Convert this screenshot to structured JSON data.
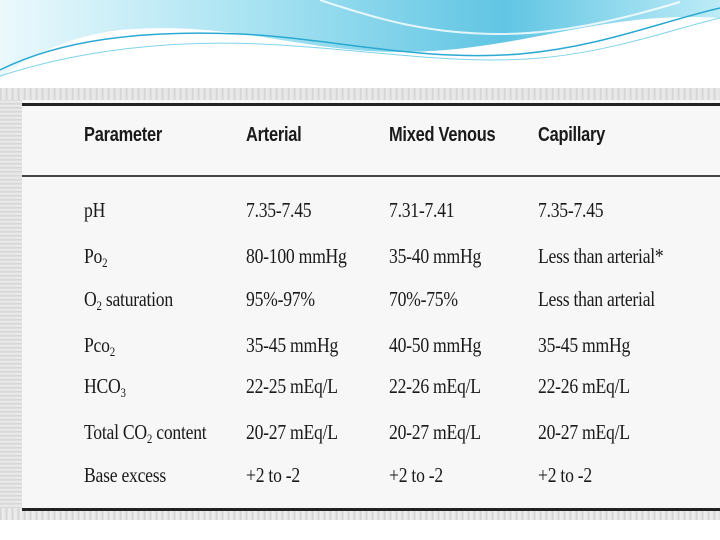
{
  "table": {
    "headers": [
      "Parameter",
      "Arterial",
      "Mixed Venous",
      "Capillary"
    ],
    "rows": [
      {
        "parameter": "pH",
        "parameter_sub": "",
        "parameter_suffix": "",
        "arterial": "7.35-7.45",
        "mixed_venous": "7.31-7.41",
        "capillary": "7.35-7.45"
      },
      {
        "parameter": "Po",
        "parameter_sub": "2",
        "parameter_suffix": "",
        "arterial": "80-100 mmHg",
        "mixed_venous": "35-40 mmHg",
        "capillary": "Less than arterial*"
      },
      {
        "parameter": "O",
        "parameter_sub": "2",
        "parameter_suffix": " saturation",
        "arterial": "95%-97%",
        "mixed_venous": "70%-75%",
        "capillary": "Less than arterial"
      },
      {
        "parameter": "Pco",
        "parameter_sub": "2",
        "parameter_suffix": "",
        "arterial": "35-45 mmHg",
        "mixed_venous": "40-50 mmHg",
        "capillary": "35-45 mmHg"
      },
      {
        "parameter": "HCO",
        "parameter_sub": "3",
        "parameter_suffix": "",
        "arterial": "22-25 mEq/L",
        "mixed_venous": "22-26 mEq/L",
        "capillary": "22-26 mEq/L"
      },
      {
        "parameter": "Total CO",
        "parameter_sub": "2",
        "parameter_suffix": " content",
        "arterial": "20-27 mEq/L",
        "mixed_venous": "20-27 mEq/L",
        "capillary": "20-27 mEq/L"
      },
      {
        "parameter": "Base excess",
        "parameter_sub": "",
        "parameter_suffix": "",
        "arterial": "+2 to -2",
        "mixed_venous": "+2 to -2",
        "capillary": "+2 to -2"
      }
    ]
  },
  "colors": {
    "wave_light": "#c9eef8",
    "wave_mid": "#7fd3ea",
    "wave_dark": "#2aa9d2",
    "text": "#1a1a1a"
  }
}
